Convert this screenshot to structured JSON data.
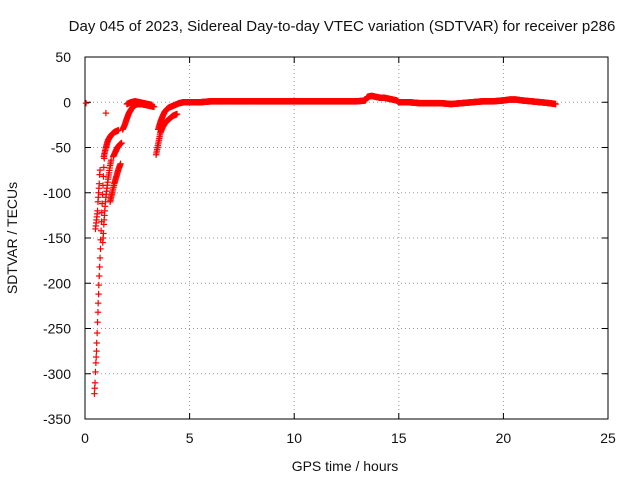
{
  "chart_data": {
    "type": "scatter",
    "title": "Day 045 of 2023, Sidereal Day-to-day VTEC variation (SDTVAR) for receiver p286",
    "xlabel": "GPS time / hours",
    "ylabel": "SDTVAR / TECUs",
    "xlim": [
      0,
      25
    ],
    "ylim": [
      -350,
      50
    ],
    "xticks": [
      0,
      5,
      10,
      15,
      20,
      25
    ],
    "yticks": [
      50,
      0,
      -50,
      -100,
      -150,
      -200,
      -250,
      -300,
      -350
    ],
    "xtick_labels": [
      "0",
      "5",
      "10",
      "15",
      "20",
      "25"
    ],
    "ytick_labels": [
      "50",
      "0",
      "-50",
      "-100",
      "-150",
      "-200",
      "-250",
      "-300",
      "-350"
    ],
    "grid": true,
    "marker": "+",
    "color": "#ff0000",
    "series": [
      {
        "name": "SDTVAR p286",
        "points": [
          [
            0.05,
            -1
          ],
          [
            0.45,
            -322
          ],
          [
            0.48,
            -310
          ],
          [
            0.5,
            -298
          ],
          [
            0.52,
            -288
          ],
          [
            0.55,
            -275
          ],
          [
            0.56,
            -266
          ],
          [
            0.58,
            -255
          ],
          [
            0.6,
            -243
          ],
          [
            0.62,
            -232
          ],
          [
            0.63,
            -222
          ],
          [
            0.65,
            -212
          ],
          [
            0.66,
            -202
          ],
          [
            0.68,
            -192
          ],
          [
            0.7,
            -182
          ],
          [
            0.72,
            -172
          ],
          [
            0.74,
            -162
          ],
          [
            0.75,
            -152
          ],
          [
            0.77,
            -142
          ],
          [
            0.79,
            -132
          ],
          [
            0.8,
            -122
          ],
          [
            0.82,
            -112
          ],
          [
            0.84,
            -102
          ],
          [
            0.86,
            -92
          ],
          [
            0.88,
            -82
          ],
          [
            0.9,
            -72
          ],
          [
            0.92,
            -62
          ],
          [
            0.5,
            -140
          ],
          [
            0.55,
            -130
          ],
          [
            0.6,
            -120
          ],
          [
            0.62,
            -110
          ],
          [
            0.65,
            -100
          ],
          [
            0.68,
            -90
          ],
          [
            0.7,
            -80
          ],
          [
            0.72,
            -75
          ],
          [
            0.85,
            -155
          ],
          [
            0.88,
            -145
          ],
          [
            0.9,
            -135
          ],
          [
            0.93,
            -125
          ],
          [
            0.96,
            -115
          ],
          [
            1.0,
            -105
          ],
          [
            1.05,
            -95
          ],
          [
            1.1,
            -85
          ],
          [
            1.15,
            -78
          ],
          [
            1.2,
            -70
          ],
          [
            1.25,
            -64
          ],
          [
            0.9,
            -60
          ],
          [
            0.95,
            -55
          ],
          [
            1.0,
            -50
          ],
          [
            1.05,
            -46
          ],
          [
            1.1,
            -42
          ],
          [
            1.2,
            -38
          ],
          [
            1.3,
            -35
          ],
          [
            1.4,
            -33
          ],
          [
            1.5,
            -32
          ],
          [
            1.6,
            -31
          ],
          [
            1.2,
            -110
          ],
          [
            1.3,
            -100
          ],
          [
            1.4,
            -90
          ],
          [
            1.5,
            -82
          ],
          [
            1.6,
            -74
          ],
          [
            1.7,
            -68
          ],
          [
            1.35,
            -60
          ],
          [
            1.45,
            -55
          ],
          [
            1.55,
            -50
          ],
          [
            1.65,
            -47
          ],
          [
            1.75,
            -45
          ],
          [
            1.0,
            -12
          ],
          [
            1.8,
            -30
          ],
          [
            1.9,
            -25
          ],
          [
            2.0,
            -18
          ],
          [
            2.1,
            -12
          ],
          [
            2.2,
            -8
          ],
          [
            2.3,
            -5
          ],
          [
            2.4,
            -3
          ],
          [
            2.5,
            -2
          ],
          [
            2.7,
            -2
          ],
          [
            2.9,
            -3
          ],
          [
            3.1,
            -4
          ],
          [
            3.3,
            -5
          ],
          [
            2.0,
            -2
          ],
          [
            2.2,
            0
          ],
          [
            2.4,
            1
          ],
          [
            2.6,
            0
          ],
          [
            2.8,
            -1
          ],
          [
            3.0,
            -2
          ],
          [
            3.2,
            -3
          ],
          [
            3.4,
            -58
          ],
          [
            3.45,
            -52
          ],
          [
            3.5,
            -46
          ],
          [
            3.55,
            -40
          ],
          [
            3.6,
            -34
          ],
          [
            3.7,
            -28
          ],
          [
            3.8,
            -24
          ],
          [
            3.9,
            -21
          ],
          [
            4.0,
            -19
          ],
          [
            4.1,
            -17
          ],
          [
            4.2,
            -15
          ],
          [
            4.3,
            -14
          ],
          [
            4.4,
            -13
          ],
          [
            3.5,
            -30
          ],
          [
            3.6,
            -22
          ],
          [
            3.7,
            -16
          ],
          [
            3.8,
            -11
          ],
          [
            3.9,
            -8
          ],
          [
            4.0,
            -6
          ],
          [
            4.1,
            -5
          ],
          [
            4.2,
            -4
          ],
          [
            4.3,
            -3
          ],
          [
            4.4,
            -2
          ],
          [
            4.5,
            -1
          ],
          [
            4.7,
            0
          ],
          [
            5.0,
            0
          ],
          [
            5.5,
            0
          ],
          [
            6.0,
            1
          ],
          [
            6.5,
            1
          ],
          [
            7.0,
            1
          ],
          [
            7.5,
            1
          ],
          [
            8.0,
            1
          ],
          [
            8.5,
            1
          ],
          [
            9.0,
            1
          ],
          [
            9.5,
            1
          ],
          [
            10.0,
            1
          ],
          [
            10.5,
            1
          ],
          [
            11.0,
            1
          ],
          [
            11.5,
            1
          ],
          [
            12.0,
            1
          ],
          [
            12.5,
            1
          ],
          [
            13.0,
            1
          ],
          [
            13.4,
            2
          ],
          [
            13.5,
            6
          ],
          [
            13.7,
            7
          ],
          [
            13.9,
            6
          ],
          [
            14.1,
            5
          ],
          [
            14.3,
            5
          ],
          [
            14.5,
            4
          ],
          [
            14.7,
            3
          ],
          [
            14.9,
            2
          ],
          [
            15.0,
            0
          ],
          [
            15.5,
            0
          ],
          [
            16.0,
            -1
          ],
          [
            16.5,
            -1
          ],
          [
            17.0,
            -1
          ],
          [
            17.5,
            -2
          ],
          [
            18.0,
            -1
          ],
          [
            18.5,
            0
          ],
          [
            19.0,
            1
          ],
          [
            19.5,
            1
          ],
          [
            20.0,
            2
          ],
          [
            20.3,
            3
          ],
          [
            20.6,
            3
          ],
          [
            20.9,
            2
          ],
          [
            21.8,
            0
          ],
          [
            22.2,
            -1
          ],
          [
            22.5,
            -2
          ]
        ]
      }
    ]
  }
}
